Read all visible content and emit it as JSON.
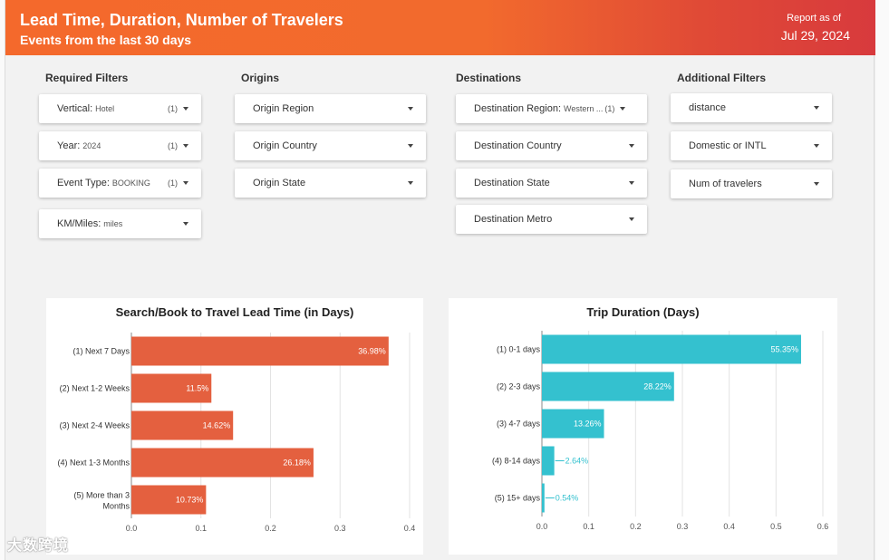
{
  "header": {
    "title": "Lead Time, Duration, Number of Travelers",
    "subtitle": "Events from the last 30 days",
    "report_as_of_label": "Report as of",
    "report_date": "Jul 29, 2024",
    "gradient_start": "#f4692c",
    "gradient_end": "#d83a3d"
  },
  "filters": {
    "required": {
      "title": "Required Filters",
      "vertical": {
        "label": "Vertical:",
        "value": "Hotel",
        "count": "(1)"
      },
      "year": {
        "label": "Year:",
        "value": "2024",
        "count": "(1)"
      },
      "event_type": {
        "label": "Event Type:",
        "value": "BOOKING",
        "count": "(1)"
      },
      "km_miles": {
        "label": "KM/Miles:",
        "value": "miles"
      }
    },
    "origins": {
      "title": "Origins",
      "region": "Origin Region",
      "country": "Origin Country",
      "state": "Origin State"
    },
    "destinations": {
      "title": "Destinations",
      "region": {
        "label": "Destination Region:",
        "value": "Western ...",
        "count": "(1)"
      },
      "country": "Destination Country",
      "state": "Destination State",
      "metro": "Destination Metro"
    },
    "additional": {
      "title": "Additional Filters",
      "distance": "distance",
      "domestic": "Domestic or INTL",
      "travelers": "Num of travelers"
    }
  },
  "watermark": "大数跨境",
  "chart_data": [
    {
      "type": "bar",
      "orientation": "horizontal",
      "title": "Search/Book to Travel Lead Time (in Days)",
      "categories": [
        "(1) Next 7 Days",
        "(2) Next 1-2 Weeks",
        "(3) Next 2-4 Weeks",
        "(4) Next 1-3 Months",
        "(5) More than 3 Months"
      ],
      "values": [
        0.3698,
        0.115,
        0.1462,
        0.2618,
        0.1073
      ],
      "labels": [
        "36.98%",
        "11.5%",
        "14.62%",
        "26.18%",
        "10.73%"
      ],
      "xlim": [
        0,
        0.4
      ],
      "xticks": [
        "0.0",
        "0.1",
        "0.2",
        "0.3",
        "0.4"
      ],
      "color": "#e4603f",
      "grid": true
    },
    {
      "type": "bar",
      "orientation": "horizontal",
      "title": "Trip Duration (Days)",
      "categories": [
        "(1) 0-1 days",
        "(2) 2-3 days",
        "(3) 4-7 days",
        "(4) 8-14 days",
        "(5) 15+ days"
      ],
      "values": [
        0.5535,
        0.2822,
        0.1326,
        0.0264,
        0.0054
      ],
      "labels": [
        "55.35%",
        "28.22%",
        "13.26%",
        "2.64%",
        "0.54%"
      ],
      "xlim": [
        0,
        0.6
      ],
      "xticks": [
        "0.0",
        "0.1",
        "0.2",
        "0.3",
        "0.4",
        "0.5",
        "0.6"
      ],
      "color": "#34c1cf",
      "grid": true
    }
  ]
}
